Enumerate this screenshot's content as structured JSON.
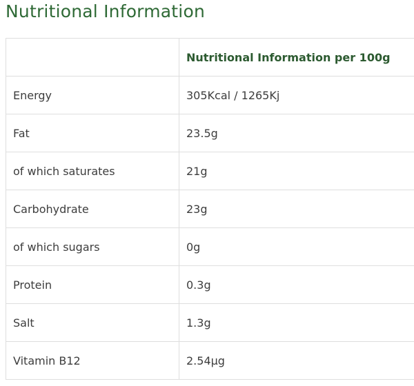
{
  "header": {
    "title": "Nutritional Information"
  },
  "table": {
    "column_header": "Nutritional Information per 100g",
    "rows": [
      [
        "Energy",
        "305Kcal / 1265Kj"
      ],
      [
        "Fat",
        "23.5g"
      ],
      [
        "of which saturates",
        "21g"
      ],
      [
        "Carbohydrate",
        "23g"
      ],
      [
        "of which sugars",
        "0g"
      ],
      [
        "Protein",
        "0.3g"
      ],
      [
        "Salt",
        "1.3g"
      ],
      [
        "Vitamin B12",
        "2.54µg"
      ]
    ]
  }
}
